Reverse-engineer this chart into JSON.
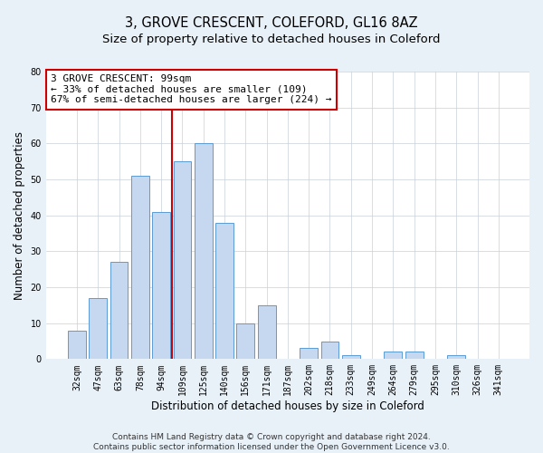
{
  "title_line1": "3, GROVE CRESCENT, COLEFORD, GL16 8AZ",
  "title_line2": "Size of property relative to detached houses in Coleford",
  "xlabel": "Distribution of detached houses by size in Coleford",
  "ylabel": "Number of detached properties",
  "categories": [
    "32sqm",
    "47sqm",
    "63sqm",
    "78sqm",
    "94sqm",
    "109sqm",
    "125sqm",
    "140sqm",
    "156sqm",
    "171sqm",
    "187sqm",
    "202sqm",
    "218sqm",
    "233sqm",
    "249sqm",
    "264sqm",
    "279sqm",
    "295sqm",
    "310sqm",
    "326sqm",
    "341sqm"
  ],
  "values": [
    8,
    17,
    27,
    51,
    41,
    55,
    60,
    38,
    10,
    15,
    0,
    3,
    5,
    1,
    0,
    2,
    2,
    0,
    1,
    0,
    0
  ],
  "bar_color": "#c5d8f0",
  "bar_edge_color": "#5b9bd5",
  "property_bin_index": 4,
  "annotation_title": "3 GROVE CRESCENT: 99sqm",
  "annotation_line1": "← 33% of detached houses are smaller (109)",
  "annotation_line2": "67% of semi-detached houses are larger (224) →",
  "vline_color": "#cc0000",
  "annotation_box_color": "#cc0000",
  "ylim": [
    0,
    80
  ],
  "yticks": [
    0,
    10,
    20,
    30,
    40,
    50,
    60,
    70,
    80
  ],
  "footer_line1": "Contains HM Land Registry data © Crown copyright and database right 2024.",
  "footer_line2": "Contains public sector information licensed under the Open Government Licence v3.0.",
  "bg_color": "#e8f0f8",
  "plot_bg_color": "#ffffff",
  "title_fontsize": 10.5,
  "subtitle_fontsize": 9.5,
  "axis_label_fontsize": 8.5,
  "tick_fontsize": 7,
  "footer_fontsize": 6.5,
  "annotation_fontsize": 8
}
